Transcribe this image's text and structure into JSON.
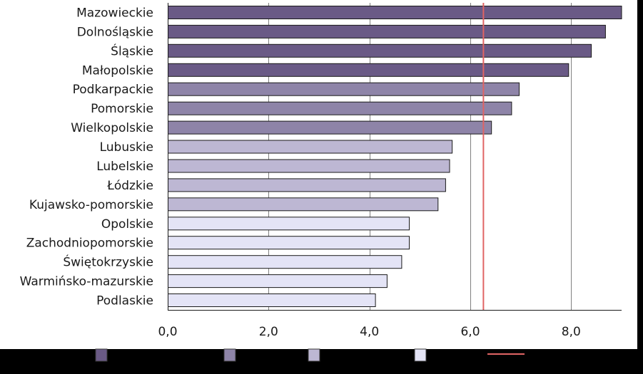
{
  "chart_data": {
    "type": "bar",
    "orientation": "horizontal",
    "title": "",
    "xlabel": "",
    "ylabel": "",
    "xlim": [
      0,
      9
    ],
    "x_ticks": [
      0,
      2,
      4,
      6,
      8
    ],
    "x_tick_labels": [
      "0,0",
      "2,0",
      "4,0",
      "6,0",
      "8,0"
    ],
    "vertical_gridlines": true,
    "legend_position": "bottom",
    "categories": [
      "Mazowieckie",
      "Dolnośląskie",
      "Śląskie",
      "Małopolskie",
      "Podkarpackie",
      "Pomorskie",
      "Wielkopolskie",
      "Lubuskie",
      "Lubelskie",
      "Łódzkie",
      "Kujawsko-pomorskie",
      "Opolskie",
      "Zachodniopomorskie",
      "Świętokrzyskie",
      "Warmińsko-mazurskie",
      "Podlaskie"
    ],
    "values": [
      9.0,
      8.68,
      8.4,
      7.95,
      6.97,
      6.82,
      6.42,
      5.64,
      5.59,
      5.51,
      5.36,
      4.79,
      4.79,
      4.64,
      4.35,
      4.12
    ],
    "bar_group": [
      1,
      1,
      1,
      1,
      2,
      2,
      2,
      3,
      3,
      3,
      3,
      4,
      4,
      4,
      4,
      4
    ],
    "reference_line_value": 6.26,
    "colors": {
      "group_1": "#6a5a86",
      "group_2": "#8e84a8",
      "group_3": "#bdb7d3",
      "group_4": "#e4e4f6",
      "reference_line": "#e06464",
      "bar_outline": "#1a1a1a",
      "plot_background": "#ffffff",
      "gridline": "#808080",
      "legend_band": "#000000"
    },
    "legend": [
      {
        "swatch": "group_1",
        "label": ""
      },
      {
        "swatch": "group_2",
        "label": ""
      },
      {
        "swatch": "group_3",
        "label": ""
      },
      {
        "swatch": "group_4",
        "label": ""
      },
      {
        "swatch": "reference_line",
        "label": ""
      }
    ]
  }
}
